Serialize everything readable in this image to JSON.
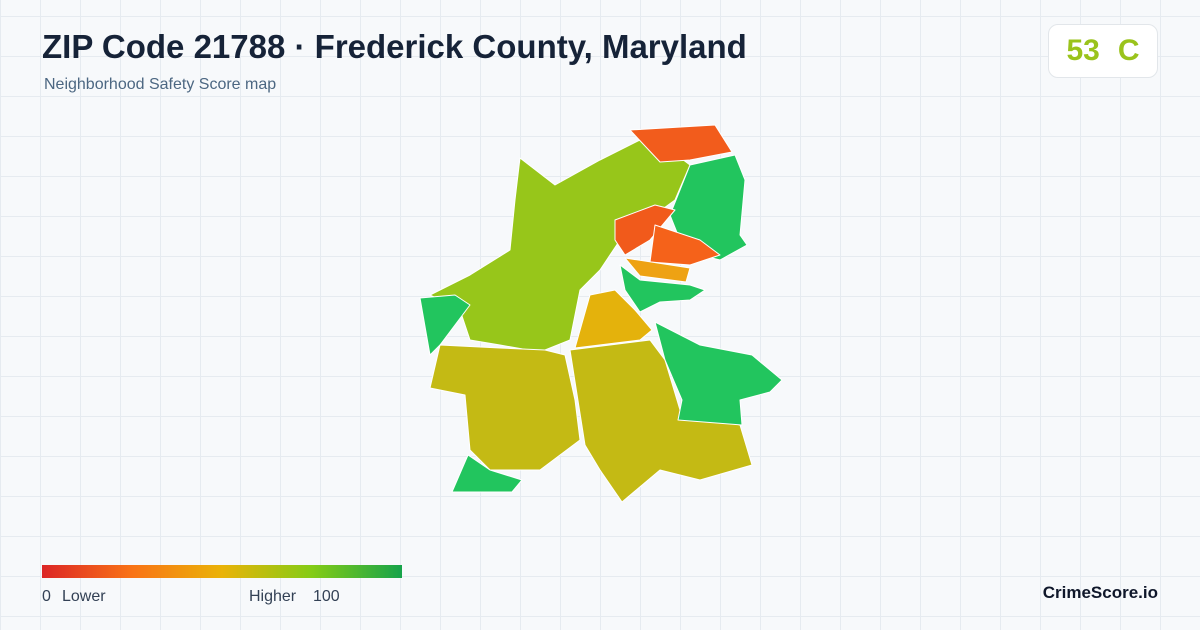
{
  "header": {
    "title": "ZIP Code 21788 · Frederick County, Maryland",
    "subtitle": "Neighborhood Safety Score map"
  },
  "score": {
    "value": "53",
    "grade": "C"
  },
  "legend": {
    "min": 0,
    "min_label": "Lower",
    "max_label": "Higher",
    "max": 100
  },
  "brand": "CrimeScore.io"
}
